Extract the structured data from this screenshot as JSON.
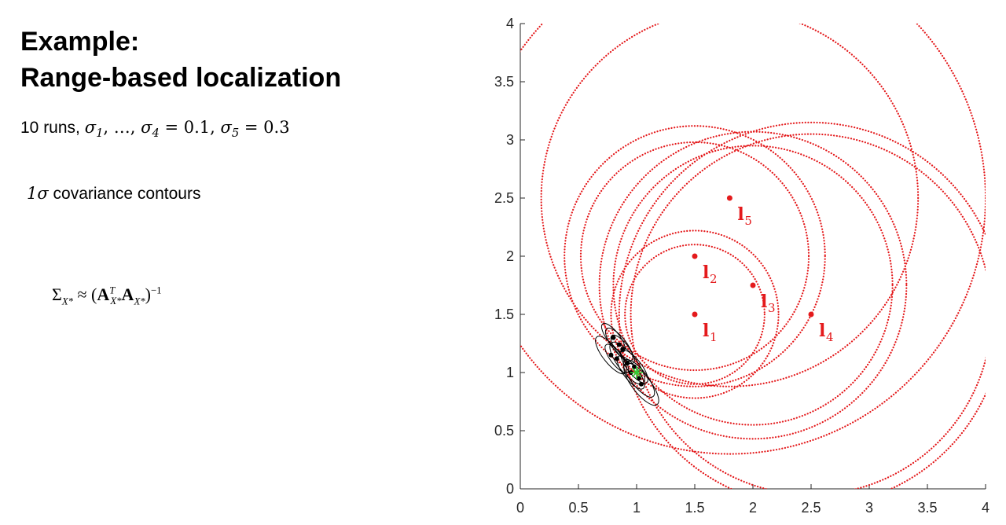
{
  "slide": {
    "title_line1": "Example:",
    "title_line2": "Range-based localization",
    "runs_label": "10 runs, ",
    "sigma_symbol": "σ",
    "sigma_sub_1": "1",
    "sigma_sub_4": "4",
    "sigma_sub_5": "5",
    "ellipsis": ", …, ",
    "sigma4_value": " = 0.1, ",
    "sigma5_value": " = 0.3",
    "one_sigma": "1σ",
    "contours_text": " covariance contours",
    "formula": {
      "sigma": "Σ",
      "sub_x": "X*",
      "approx": " ≈ (",
      "A": "A",
      "sup_T": "T",
      "close": ")",
      "sup_inv": "−1"
    }
  },
  "chart_data": {
    "type": "scatter",
    "xlim": [
      0,
      4
    ],
    "ylim": [
      0,
      4
    ],
    "x_ticks": [
      "0",
      "0.5",
      "1",
      "1.5",
      "2",
      "2.5",
      "3",
      "3.5",
      "4"
    ],
    "y_ticks": [
      "0",
      "0.5",
      "1",
      "1.5",
      "2",
      "2.5",
      "3",
      "3.5",
      "4"
    ],
    "grid": false,
    "colors": {
      "landmark": "#e41a1c",
      "range_circle": "#e41a1c",
      "estimate": "#000000",
      "ellipse": "#000000",
      "true_pose": "#33cc33"
    },
    "landmarks": [
      {
        "label": "l",
        "sub": "1",
        "x": 1.5,
        "y": 1.5
      },
      {
        "label": "l",
        "sub": "2",
        "x": 1.5,
        "y": 2.0
      },
      {
        "label": "l",
        "sub": "3",
        "x": 2.0,
        "y": 1.75
      },
      {
        "label": "l",
        "sub": "4",
        "x": 2.5,
        "y": 1.5
      },
      {
        "label": "l",
        "sub": "5",
        "x": 1.8,
        "y": 2.5
      }
    ],
    "true_pose": {
      "x": 1.0,
      "y": 1.0
    },
    "range_circles": [
      {
        "cx": 1.5,
        "cy": 1.5,
        "r": 0.6
      },
      {
        "cx": 1.5,
        "cy": 1.5,
        "r": 0.72
      },
      {
        "cx": 1.5,
        "cy": 2.0,
        "r": 0.98
      },
      {
        "cx": 1.5,
        "cy": 2.0,
        "r": 1.12
      },
      {
        "cx": 2.0,
        "cy": 1.75,
        "r": 1.2
      },
      {
        "cx": 2.0,
        "cy": 1.75,
        "r": 1.32
      },
      {
        "cx": 2.5,
        "cy": 1.5,
        "r": 1.55
      },
      {
        "cx": 2.5,
        "cy": 1.5,
        "r": 1.65
      },
      {
        "cx": 1.8,
        "cy": 2.5,
        "r": 1.62
      },
      {
        "cx": 1.8,
        "cy": 2.5,
        "r": 2.2
      }
    ],
    "estimates": [
      {
        "x": 0.8,
        "y": 1.3
      },
      {
        "x": 0.85,
        "y": 1.24
      },
      {
        "x": 0.78,
        "y": 1.15
      },
      {
        "x": 0.92,
        "y": 1.08
      },
      {
        "x": 0.88,
        "y": 1.2
      },
      {
        "x": 0.95,
        "y": 1.0
      },
      {
        "x": 1.02,
        "y": 0.95
      },
      {
        "x": 1.04,
        "y": 0.9
      },
      {
        "x": 0.83,
        "y": 1.12
      },
      {
        "x": 0.98,
        "y": 1.05
      }
    ],
    "ellipse_axes": {
      "a": 0.2,
      "b": 0.07,
      "angle_deg": -52
    }
  }
}
